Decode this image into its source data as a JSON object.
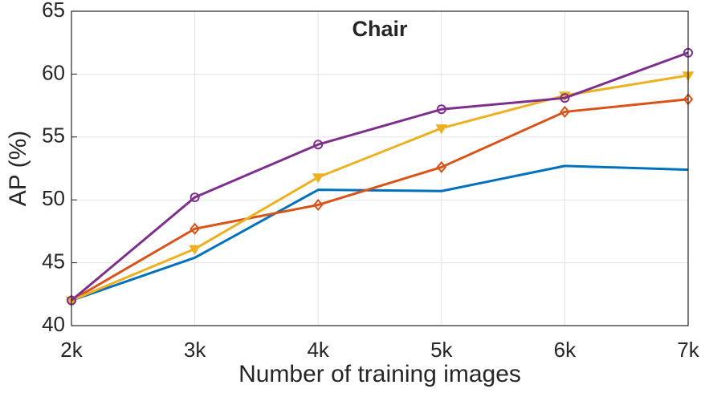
{
  "chart_data": {
    "type": "line",
    "title": "Chair",
    "x_label": "Number of  training images",
    "y_label": "AP (%)",
    "categories": [
      "2k",
      "3k",
      "4k",
      "5k",
      "6k",
      "7k"
    ],
    "series": [
      {
        "color": "#0072bd",
        "marker": "none",
        "values": [
          42,
          45.4,
          50.8,
          50.7,
          52.7,
          52.4
        ]
      },
      {
        "color": "#d95319",
        "marker": "diamond",
        "values": [
          42,
          47.7,
          49.6,
          52.6,
          57.0,
          58.0
        ]
      },
      {
        "color": "#edb120",
        "marker": "triangle-down",
        "values": [
          42,
          46.1,
          51.8,
          55.7,
          58.3,
          59.9
        ]
      },
      {
        "color": "#7e2f8e",
        "marker": "circle",
        "values": [
          42,
          50.2,
          54.4,
          57.2,
          58.1,
          61.7
        ]
      }
    ],
    "ylim": [
      40,
      65
    ],
    "yticks": [
      40,
      45,
      50,
      55,
      60,
      65
    ],
    "grid": true
  }
}
